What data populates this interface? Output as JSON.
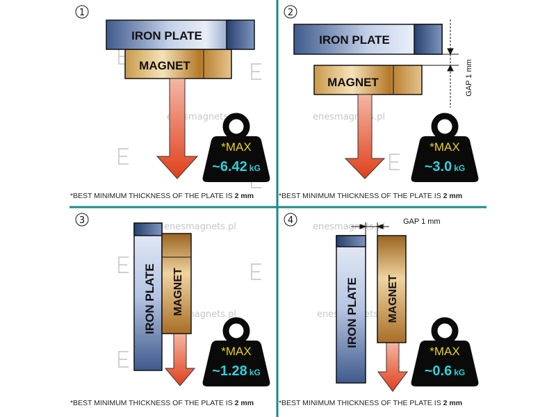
{
  "labels": {
    "iron_plate": "IRON PLATE",
    "magnet": "MAGNET",
    "gap": "GAP  1 mm",
    "max": "*MAX",
    "unit": "kG"
  },
  "footnote": {
    "text": "*BEST MINIMUM THICKNESS OF THE PLATE IS ",
    "bold": "2 mm"
  },
  "watermark": {
    "url": "enesmagnets.pl",
    "logo": "Enes"
  },
  "panels": [
    {
      "number": "1",
      "value": "~6.42"
    },
    {
      "number": "2",
      "value": "~3.0"
    },
    {
      "number": "3",
      "value": "~1.28"
    },
    {
      "number": "4",
      "value": "~0.6"
    }
  ],
  "colors": {
    "divider": "#1a8a8a",
    "arrow": "#e0401c",
    "weight": "#0a0a0a",
    "max_text": "#e8d21a",
    "value_text": "#2bd3da"
  }
}
